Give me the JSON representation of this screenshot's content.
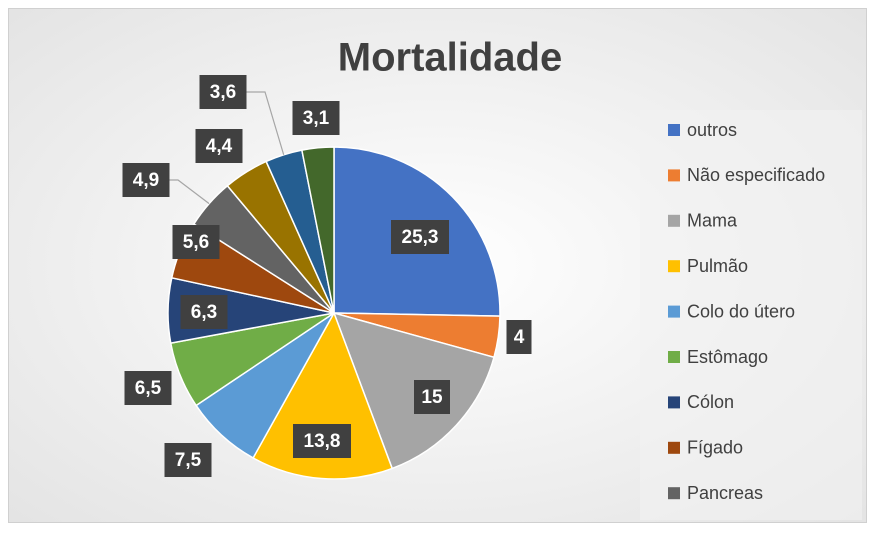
{
  "chart_data": {
    "type": "pie",
    "title": "Mortalidade",
    "categories": [
      "outros",
      "Não especificado",
      "Mama",
      "Pulmão",
      "Colo do útero",
      "Estômago",
      "Cólon",
      "Fígado",
      "Pancreas",
      null,
      null,
      null
    ],
    "values": [
      25.3,
      4,
      15,
      13.8,
      7.5,
      6.5,
      6.3,
      5.6,
      4.9,
      4.4,
      3.6,
      3.1
    ],
    "value_labels": [
      "25,3",
      "4",
      "15",
      "13,8",
      "7,5",
      "6,5",
      "6,3",
      "5,6",
      "4,9",
      "4,4",
      "3,6",
      "3,1"
    ],
    "colors": [
      "#4472c4",
      "#ed7d31",
      "#a5a5a5",
      "#ffc000",
      "#5b9bd5",
      "#70ad47",
      "#264478",
      "#9e480e",
      "#636363",
      "#997300",
      "#255e91",
      "#43682b"
    ],
    "legend": "right"
  }
}
